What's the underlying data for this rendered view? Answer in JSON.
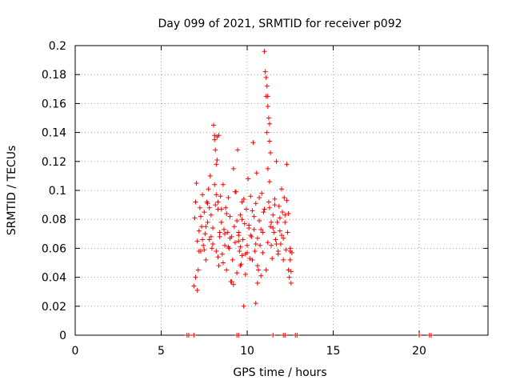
{
  "chart_data": {
    "type": "scatter",
    "title": "Day 099 of 2021, SRMTID for receiver p092",
    "xlabel": "GPS time / hours",
    "ylabel": "SRMTID / TECUs",
    "xlim": [
      0,
      24
    ],
    "ylim": [
      0,
      0.2
    ],
    "xticks": [
      0,
      5,
      10,
      15,
      20
    ],
    "xtick_labels": [
      "0",
      "5",
      "10",
      "15",
      "20"
    ],
    "yticks": [
      0,
      0.02,
      0.04,
      0.06,
      0.08,
      0.1,
      0.12,
      0.14,
      0.16,
      0.18,
      0.2
    ],
    "ytick_labels": [
      "0",
      "0.02",
      "0.04",
      "0.06",
      "0.08",
      "0.1",
      "0.12",
      "0.14",
      "0.16",
      "0.18",
      "0.2"
    ],
    "grid": true,
    "marker": "+",
    "color": "#ff0000",
    "series": [
      {
        "name": "SRMTID",
        "x": [
          6.5,
          6.6,
          6.9,
          9.4,
          9.5,
          11.5,
          12.1,
          12.2,
          12.8,
          12.9,
          20.0,
          20.6,
          20.7,
          6.9,
          6.95,
          7.0,
          7.05,
          7.1,
          7.15,
          7.2,
          7.25,
          7.3,
          7.35,
          7.4,
          7.45,
          7.5,
          7.55,
          7.6,
          7.65,
          7.7,
          7.75,
          7.8,
          7.85,
          7.9,
          7.95,
          8.0,
          8.05,
          8.1,
          8.15,
          8.2,
          8.25,
          8.3,
          8.35,
          8.4,
          8.45,
          8.5,
          8.55,
          8.6,
          8.65,
          8.7,
          8.75,
          8.8,
          8.85,
          8.9,
          8.95,
          9.0,
          9.05,
          9.1,
          9.15,
          9.2,
          9.25,
          9.3,
          9.35,
          9.4,
          9.45,
          9.5,
          9.55,
          9.6,
          9.65,
          9.7,
          9.75,
          9.8,
          9.85,
          9.9,
          9.95,
          10.0,
          10.05,
          10.1,
          10.15,
          10.2,
          10.25,
          10.3,
          10.35,
          10.4,
          10.45,
          10.5,
          10.55,
          10.6,
          10.65,
          10.7,
          10.75,
          10.8,
          10.85,
          10.9,
          10.95,
          11.0,
          11.05,
          11.1,
          11.15,
          11.2,
          11.25,
          11.3,
          11.35,
          11.4,
          11.45,
          11.5,
          11.55,
          11.6,
          11.65,
          11.7,
          11.75,
          11.8,
          11.85,
          11.9,
          11.95,
          12.0,
          12.05,
          12.1,
          12.15,
          12.2,
          12.25,
          12.3,
          12.35,
          12.4,
          12.45,
          12.5,
          12.55,
          8.1,
          8.15,
          8.2,
          8.25,
          8.3,
          8.35,
          11.1,
          11.15,
          11.2,
          11.2,
          11.25,
          11.3,
          11.3,
          11.35,
          7.0,
          7.2,
          7.4,
          7.6,
          7.8,
          8.0,
          8.2,
          8.4,
          8.6,
          8.8,
          9.0,
          9.2,
          9.4,
          9.6,
          9.8,
          10.0,
          10.2,
          10.4,
          10.6,
          10.8,
          11.0,
          11.2,
          11.4,
          11.6,
          11.8,
          12.0,
          12.2,
          12.4,
          7.1,
          7.3,
          7.5,
          7.7,
          7.9,
          8.1,
          8.3,
          8.5,
          8.7,
          8.9,
          9.1,
          9.3,
          9.5,
          9.7,
          9.9,
          10.1,
          10.3,
          10.5,
          10.7,
          10.9,
          11.1,
          11.3,
          11.5,
          11.7,
          11.9,
          12.1,
          12.3,
          12.5,
          9.6,
          9.7,
          9.5,
          10.5,
          10.6,
          12.5,
          12.55,
          12.6
        ],
        "y": [
          0.0,
          0.0,
          0.0,
          0.0,
          0.0,
          0.0,
          0.0,
          0.0,
          0.0,
          0.0,
          0.0,
          0.0,
          0.0,
          0.034,
          0.081,
          0.092,
          0.105,
          0.065,
          0.045,
          0.072,
          0.088,
          0.058,
          0.075,
          0.097,
          0.062,
          0.085,
          0.07,
          0.052,
          0.092,
          0.078,
          0.101,
          0.066,
          0.11,
          0.083,
          0.06,
          0.074,
          0.145,
          0.138,
          0.09,
          0.058,
          0.121,
          0.087,
          0.048,
          0.068,
          0.096,
          0.078,
          0.056,
          0.104,
          0.073,
          0.062,
          0.088,
          0.045,
          0.071,
          0.095,
          0.06,
          0.082,
          0.037,
          0.068,
          0.052,
          0.115,
          0.075,
          0.064,
          0.099,
          0.043,
          0.128,
          0.071,
          0.058,
          0.083,
          0.049,
          0.092,
          0.066,
          0.02,
          0.077,
          0.056,
          0.087,
          0.062,
          0.108,
          0.074,
          0.053,
          0.096,
          0.068,
          0.086,
          0.133,
          0.073,
          0.058,
          0.091,
          0.112,
          0.067,
          0.045,
          0.079,
          0.062,
          0.041,
          0.098,
          0.071,
          0.085,
          0.196,
          0.182,
          0.165,
          0.14,
          0.115,
          0.092,
          0.088,
          0.075,
          0.062,
          0.053,
          0.083,
          0.071,
          0.094,
          0.066,
          0.12,
          0.078,
          0.058,
          0.089,
          0.072,
          0.063,
          0.101,
          0.085,
          0.067,
          0.095,
          0.078,
          0.059,
          0.118,
          0.071,
          0.084,
          0.04,
          0.06,
          0.036,
          0.135,
          0.128,
          0.118,
          0.137,
          0.092,
          0.138,
          0.178,
          0.172,
          0.165,
          0.158,
          0.15,
          0.146,
          0.134,
          0.126,
          0.04,
          0.058,
          0.066,
          0.075,
          0.088,
          0.063,
          0.097,
          0.071,
          0.05,
          0.084,
          0.067,
          0.035,
          0.079,
          0.061,
          0.094,
          0.057,
          0.069,
          0.082,
          0.048,
          0.073,
          0.087,
          0.064,
          0.078,
          0.09,
          0.056,
          0.069,
          0.083,
          0.045,
          0.031,
          0.082,
          0.059,
          0.091,
          0.068,
          0.104,
          0.054,
          0.087,
          0.07,
          0.061,
          0.037,
          0.099,
          0.065,
          0.08,
          0.042,
          0.076,
          0.052,
          0.063,
          0.095,
          0.057,
          0.045,
          0.106,
          0.074,
          0.063,
          0.081,
          0.052,
          0.093,
          0.058,
          0.048,
          0.055,
          0.069,
          0.022,
          0.036,
          0.052,
          0.044,
          0.057
        ]
      }
    ]
  }
}
